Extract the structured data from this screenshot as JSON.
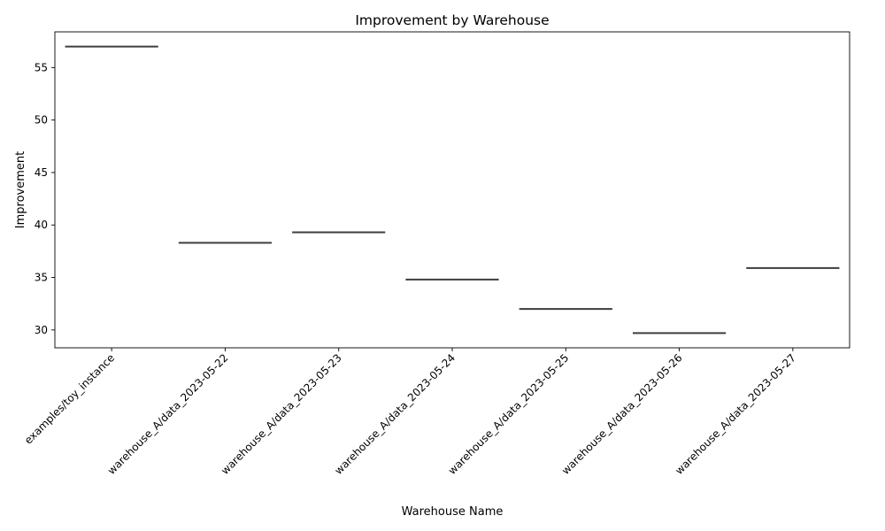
{
  "chart_data": {
    "type": "box",
    "title": "Improvement by Warehouse",
    "xlabel": "Warehouse Name",
    "ylabel": "Improvement",
    "categories": [
      "examples/toy_instance",
      "warehouse_A/data_2023-05-22",
      "warehouse_A/data_2023-05-23",
      "warehouse_A/data_2023-05-24",
      "warehouse_A/data_2023-05-25",
      "warehouse_A/data_2023-05-26",
      "warehouse_A/data_2023-05-27"
    ],
    "values": [
      57.0,
      38.3,
      39.3,
      34.8,
      32.0,
      29.7,
      35.9
    ],
    "ylim": [
      28.3,
      58.4
    ],
    "yticks": [
      30,
      35,
      40,
      45,
      50,
      55
    ],
    "grid": false,
    "legend": "none",
    "colors": {
      "mark": "#3d3d3d",
      "axis": "#000000"
    }
  }
}
